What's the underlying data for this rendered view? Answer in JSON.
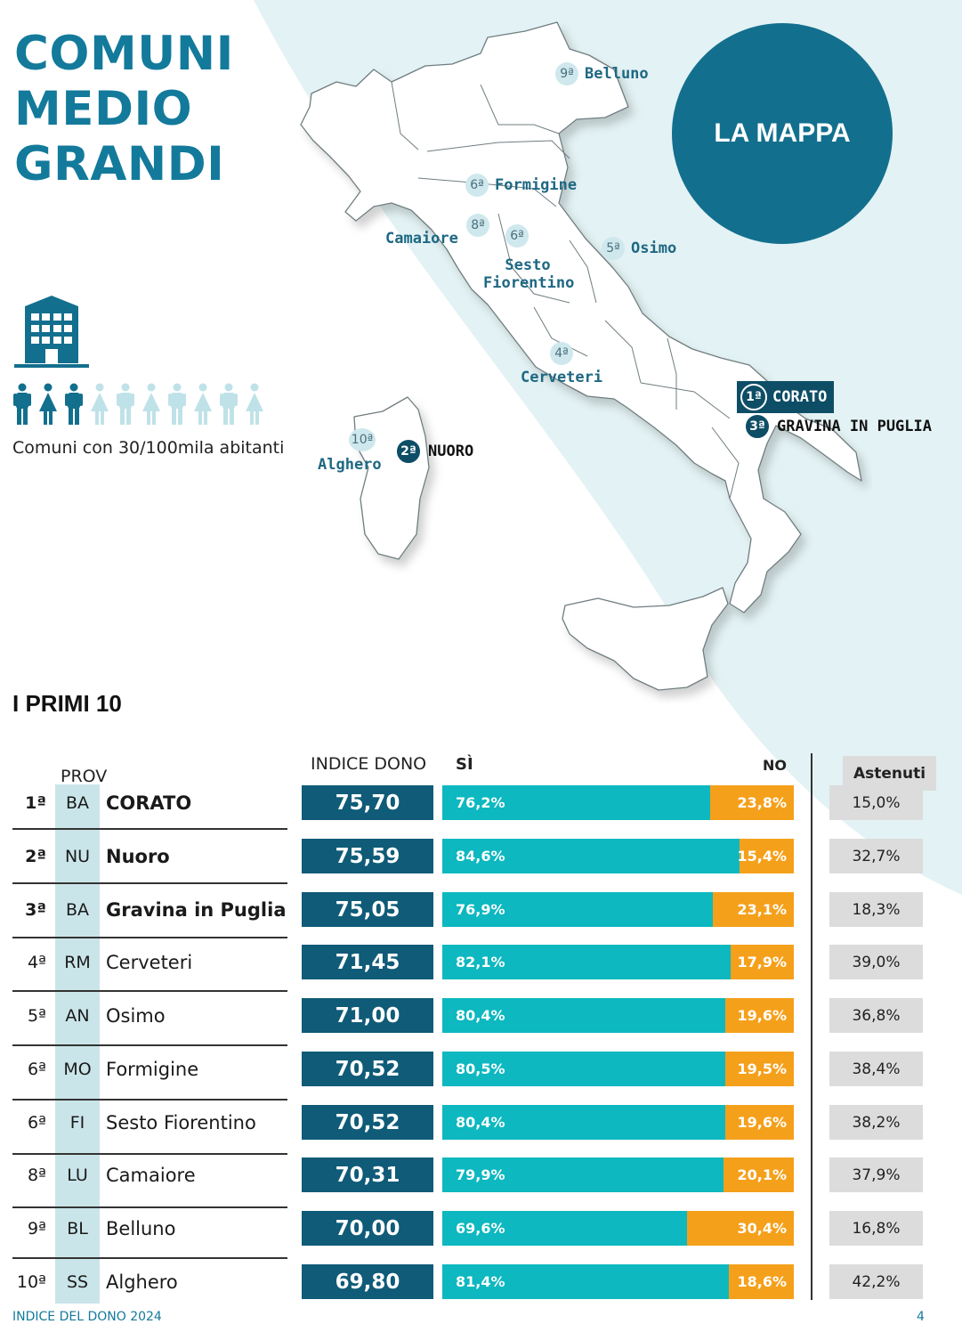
{
  "page": {
    "title_lines": [
      "COMUNI",
      "MEDIO",
      "GRANDI"
    ],
    "category_label": "Comuni con 30/100mila abitanti",
    "map_badge": "LA MAPPA",
    "section_title": "I PRIMI 10",
    "footer": "INDICE DEL DONO 2024",
    "page_number": "4"
  },
  "colors": {
    "accent": "#137a9b",
    "index_box": "#0f5b78",
    "yes": "#0db8c0",
    "no": "#f5a01b",
    "abstained_box": "#dcdcdc",
    "prov_column": "#cae5ea"
  },
  "icons": {
    "building": "building-icon",
    "people": [
      "man",
      "woman",
      "man",
      "woman-light",
      "man-light",
      "woman-light",
      "man-light",
      "woman-light",
      "man-light",
      "woman-light"
    ]
  },
  "map_markers": [
    {
      "rank": "9ª",
      "name": "Belluno",
      "style": "light"
    },
    {
      "rank": "6ª",
      "name": "Formigine",
      "style": "light"
    },
    {
      "rank": "8ª",
      "name": "Camaiore",
      "style": "light"
    },
    {
      "rank": "6ª",
      "name": "Sesto Fiorentino",
      "style": "light"
    },
    {
      "rank": "5ª",
      "name": "Osimo",
      "style": "light"
    },
    {
      "rank": "4ª",
      "name": "Cerveteri",
      "style": "light"
    },
    {
      "rank": "1ª",
      "name": "CORATO",
      "style": "dark"
    },
    {
      "rank": "3ª",
      "name": "GRAVINA IN PUGLIA",
      "style": "dark"
    },
    {
      "rank": "2ª",
      "name": "NUORO",
      "style": "dark"
    },
    {
      "rank": "10ª",
      "name": "Alghero",
      "style": "light"
    }
  ],
  "table": {
    "headers": {
      "prov": "PROV",
      "index": "INDICE DONO",
      "yes": "SÌ",
      "no": "NO",
      "abstained": "Astenuti"
    },
    "rows": [
      {
        "rank": "1ª",
        "prov": "BA",
        "city": "CORATO",
        "bold": true,
        "index": "75,70",
        "yes": "76,2%",
        "no": "23,8%",
        "abstained": "15,0%",
        "yes_frac": 0.762
      },
      {
        "rank": "2ª",
        "prov": "NU",
        "city": "Nuoro",
        "bold": true,
        "index": "75,59",
        "yes": "84,6%",
        "no": "15,4%",
        "abstained": "32,7%",
        "yes_frac": 0.846
      },
      {
        "rank": "3ª",
        "prov": "BA",
        "city": "Gravina in Puglia",
        "bold": true,
        "index": "75,05",
        "yes": "76,9%",
        "no": "23,1%",
        "abstained": "18,3%",
        "yes_frac": 0.769
      },
      {
        "rank": "4ª",
        "prov": "RM",
        "city": "Cerveteri",
        "bold": false,
        "index": "71,45",
        "yes": "82,1%",
        "no": "17,9%",
        "abstained": "39,0%",
        "yes_frac": 0.821
      },
      {
        "rank": "5ª",
        "prov": "AN",
        "city": "Osimo",
        "bold": false,
        "index": "71,00",
        "yes": "80,4%",
        "no": "19,6%",
        "abstained": "36,8%",
        "yes_frac": 0.804
      },
      {
        "rank": "6ª",
        "prov": "MO",
        "city": "Formigine",
        "bold": false,
        "index": "70,52",
        "yes": "80,5%",
        "no": "19,5%",
        "abstained": "38,4%",
        "yes_frac": 0.805
      },
      {
        "rank": "6ª",
        "prov": "FI",
        "city": "Sesto Fiorentino",
        "bold": false,
        "index": "70,52",
        "yes": "80,4%",
        "no": "19,6%",
        "abstained": "38,2%",
        "yes_frac": 0.804
      },
      {
        "rank": "8ª",
        "prov": "LU",
        "city": "Camaiore",
        "bold": false,
        "index": "70,31",
        "yes": "79,9%",
        "no": "20,1%",
        "abstained": "37,9%",
        "yes_frac": 0.799
      },
      {
        "rank": "9ª",
        "prov": "BL",
        "city": "Belluno",
        "bold": false,
        "index": "70,00",
        "yes": "69,6%",
        "no": "30,4%",
        "abstained": "16,8%",
        "yes_frac": 0.696
      },
      {
        "rank": "10ª",
        "prov": "SS",
        "city": "Alghero",
        "bold": false,
        "index": "69,80",
        "yes": "81,4%",
        "no": "18,6%",
        "abstained": "42,2%",
        "yes_frac": 0.814
      }
    ]
  }
}
